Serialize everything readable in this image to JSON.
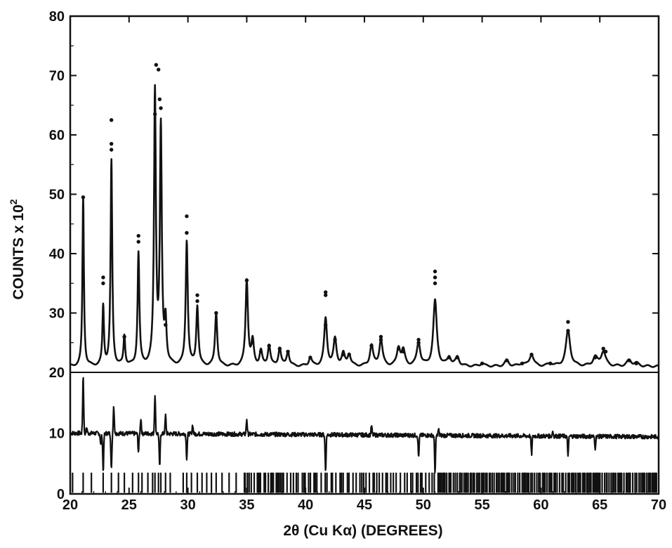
{
  "chart_data": {
    "type": "line",
    "title": "",
    "xlabel": "2θ (Cu Kα) (DEGREES)",
    "ylabel": "COUNTS x 10",
    "ylabel_superscript": "2",
    "xlim": [
      20,
      70
    ],
    "ylim": [
      0,
      80
    ],
    "x_ticks": [
      20,
      25,
      30,
      35,
      40,
      45,
      50,
      55,
      60,
      65,
      70
    ],
    "y_ticks": [
      10,
      20,
      30,
      40,
      50,
      60,
      70,
      80
    ],
    "y_tick_labels": [
      "10",
      "20",
      "30",
      "40",
      "50",
      "60",
      "70",
      "80"
    ],
    "lower_axis_labels": [
      "20",
      "10",
      "0"
    ],
    "grid": false,
    "legend": "none",
    "colors": {
      "ink": "#111111",
      "background": "#ffffff"
    },
    "series": [
      {
        "kind": "observed-points",
        "x": [
          21.1,
          22.8,
          22.8,
          23.5,
          23.5,
          23.5,
          24.6,
          25.8,
          25.8,
          27.2,
          27.3,
          27.5,
          27.6,
          27.7,
          28.1,
          29.9,
          29.9,
          30.8,
          30.8,
          32.4,
          35.0,
          35.5,
          36.2,
          36.9,
          37.8,
          38.5,
          40.4,
          41.7,
          41.7,
          41.7,
          42.5,
          43.2,
          43.7,
          45.6,
          46.4,
          46.4,
          47.9,
          48.3,
          49.6,
          49.6,
          51.0,
          51.0,
          51.0,
          52.2,
          52.9,
          55.0,
          57.1,
          58.4,
          59.2,
          60.8,
          62.3,
          62.3,
          64.6,
          65.3,
          65.5,
          67.5,
          68.1
        ],
        "y": [
          49.5,
          36.0,
          35.0,
          62.5,
          58.5,
          57.5,
          26.0,
          43.0,
          42.0,
          63.5,
          71.8,
          71.0,
          66.0,
          64.5,
          28.0,
          46.3,
          43.5,
          33.0,
          32.0,
          30.0,
          35.5,
          25.0,
          23.5,
          24.5,
          24.0,
          23.5,
          22.5,
          33.5,
          33.0,
          28.0,
          25.5,
          23.0,
          23.0,
          24.5,
          26.0,
          25.5,
          24.0,
          23.5,
          25.5,
          25.0,
          37.0,
          36.0,
          35.0,
          22.5,
          22.5,
          21.5,
          22.0,
          21.5,
          23.0,
          21.5,
          28.5,
          27.0,
          22.5,
          24.0,
          23.5,
          22.0,
          21.5
        ]
      },
      {
        "kind": "calculated-profile",
        "baseline": 21,
        "peaks": [
          {
            "x": 21.1,
            "y": 49.5
          },
          {
            "x": 22.8,
            "y": 31.0
          },
          {
            "x": 23.5,
            "y": 55.5
          },
          {
            "x": 24.6,
            "y": 26.0
          },
          {
            "x": 25.8,
            "y": 40.0
          },
          {
            "x": 27.2,
            "y": 66.8
          },
          {
            "x": 27.7,
            "y": 60.5
          },
          {
            "x": 28.1,
            "y": 28.0
          },
          {
            "x": 29.9,
            "y": 42.0
          },
          {
            "x": 30.8,
            "y": 31.0
          },
          {
            "x": 32.4,
            "y": 30.0
          },
          {
            "x": 35.0,
            "y": 35.5
          },
          {
            "x": 35.5,
            "y": 25.0
          },
          {
            "x": 36.2,
            "y": 23.5
          },
          {
            "x": 36.9,
            "y": 24.5
          },
          {
            "x": 37.8,
            "y": 24.0
          },
          {
            "x": 38.5,
            "y": 23.5
          },
          {
            "x": 40.4,
            "y": 22.5
          },
          {
            "x": 41.7,
            "y": 29.0
          },
          {
            "x": 42.5,
            "y": 25.5
          },
          {
            "x": 43.2,
            "y": 23.0
          },
          {
            "x": 43.7,
            "y": 23.0
          },
          {
            "x": 45.6,
            "y": 24.5
          },
          {
            "x": 46.4,
            "y": 25.5
          },
          {
            "x": 47.9,
            "y": 24.0
          },
          {
            "x": 48.3,
            "y": 23.5
          },
          {
            "x": 49.6,
            "y": 25.0
          },
          {
            "x": 51.0,
            "y": 32.0
          },
          {
            "x": 52.2,
            "y": 22.5
          },
          {
            "x": 52.9,
            "y": 22.5
          },
          {
            "x": 55.0,
            "y": 21.5
          },
          {
            "x": 57.1,
            "y": 22.0
          },
          {
            "x": 58.4,
            "y": 21.5
          },
          {
            "x": 59.2,
            "y": 23.0
          },
          {
            "x": 60.8,
            "y": 21.5
          },
          {
            "x": 62.3,
            "y": 27.0
          },
          {
            "x": 64.6,
            "y": 22.5
          },
          {
            "x": 65.3,
            "y": 23.5
          },
          {
            "x": 67.5,
            "y": 22.0
          },
          {
            "x": 68.1,
            "y": 21.5
          }
        ]
      },
      {
        "kind": "difference-curve",
        "baseline": 10,
        "features": [
          {
            "x": 21.1,
            "y": 19.5
          },
          {
            "x": 21.4,
            "y": 11.0
          },
          {
            "x": 22.6,
            "y": 8.0
          },
          {
            "x": 22.8,
            "y": 3.8
          },
          {
            "x": 23.5,
            "y": 4.0
          },
          {
            "x": 23.7,
            "y": 14.5
          },
          {
            "x": 25.8,
            "y": 7.0
          },
          {
            "x": 26.0,
            "y": 12.5
          },
          {
            "x": 27.2,
            "y": 16.5
          },
          {
            "x": 27.6,
            "y": 4.5
          },
          {
            "x": 28.1,
            "y": 13.0
          },
          {
            "x": 29.9,
            "y": 6.0
          },
          {
            "x": 30.4,
            "y": 11.5
          },
          {
            "x": 35.0,
            "y": 12.5
          },
          {
            "x": 41.7,
            "y": 4.0
          },
          {
            "x": 45.6,
            "y": 11.5
          },
          {
            "x": 49.6,
            "y": 6.5
          },
          {
            "x": 51.0,
            "y": 4.0
          },
          {
            "x": 51.3,
            "y": 11.0
          },
          {
            "x": 59.2,
            "y": 7.0
          },
          {
            "x": 61.0,
            "y": 10.8
          },
          {
            "x": 62.3,
            "y": 7.0
          },
          {
            "x": 64.6,
            "y": 8.0
          }
        ]
      }
    ]
  }
}
